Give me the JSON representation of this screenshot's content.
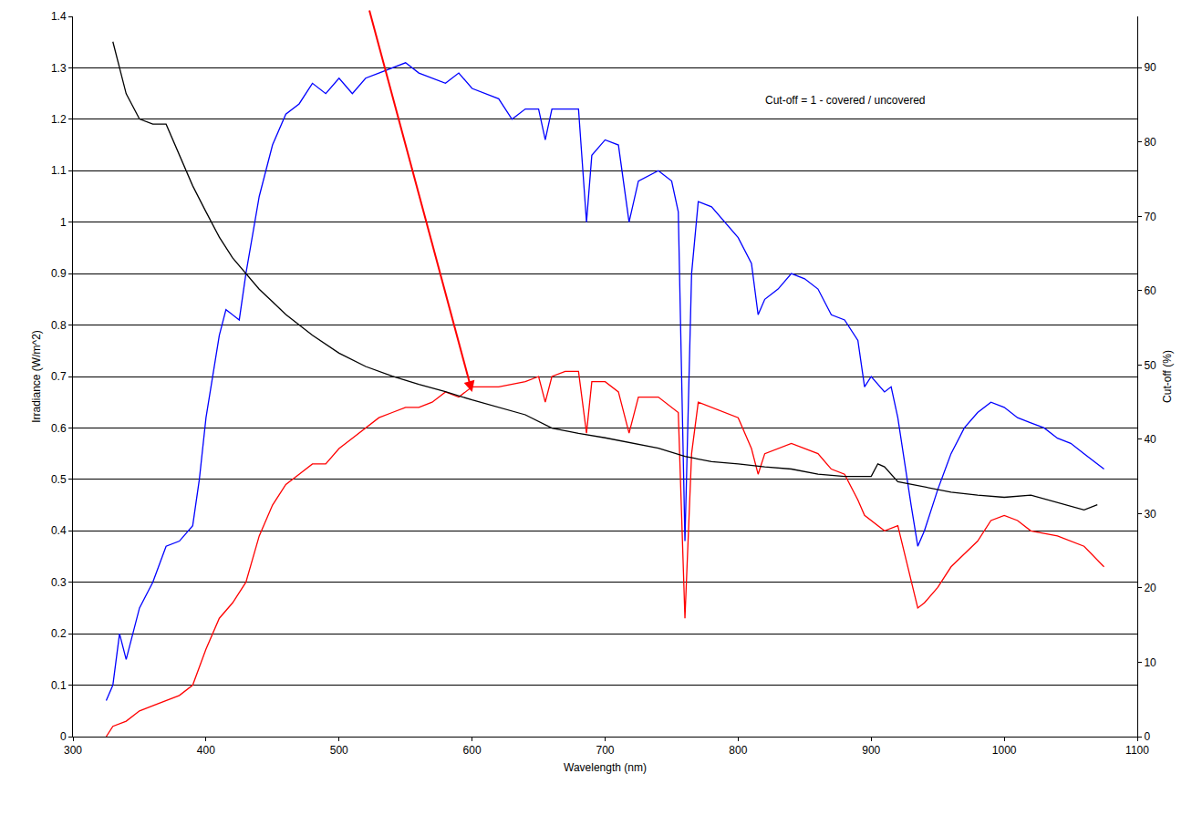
{
  "chart_data": {
    "type": "line",
    "x_label": "Wavelength (nm)",
    "y_label": "Irradiance (W/m^2)",
    "y2_label": "Cut-off (%)",
    "annotations": [
      "Cut-off = 1 - covered / uncovered"
    ],
    "xlim": [
      300,
      1100
    ],
    "xticks": [
      300,
      400,
      500,
      600,
      700,
      800,
      900,
      1000,
      1100
    ],
    "ylim": [
      0,
      1.4
    ],
    "yticks": [
      0,
      0.1,
      0.2,
      0.3,
      0.4,
      0.5,
      0.6,
      0.7,
      0.8,
      0.9,
      1,
      1.1,
      1.2,
      1.3,
      1.4
    ],
    "y2lim": [
      0,
      96.9
    ],
    "y2ticks": [
      0,
      10,
      20,
      30,
      40,
      50,
      60,
      70,
      80,
      90
    ],
    "grid": true,
    "series": [
      {
        "color": "#0000ff",
        "x": [
          325,
          330,
          335,
          340,
          350,
          360,
          370,
          380,
          390,
          395,
          400,
          405,
          410,
          415,
          420,
          425,
          430,
          440,
          450,
          460,
          470,
          480,
          490,
          500,
          510,
          520,
          530,
          540,
          550,
          560,
          570,
          580,
          590,
          600,
          620,
          630,
          640,
          650,
          655,
          660,
          680,
          686,
          690,
          700,
          710,
          718,
          725,
          740,
          750,
          755,
          760,
          765,
          770,
          780,
          800,
          810,
          815,
          820,
          830,
          840,
          850,
          860,
          870,
          880,
          890,
          895,
          900,
          910,
          915,
          920,
          930,
          935,
          940,
          950,
          960,
          970,
          980,
          990,
          1000,
          1010,
          1020,
          1030,
          1040,
          1050,
          1060,
          1070,
          1075
        ],
        "values": [
          0.07,
          0.1,
          0.2,
          0.15,
          0.25,
          0.3,
          0.37,
          0.38,
          0.41,
          0.5,
          0.62,
          0.7,
          0.78,
          0.83,
          0.82,
          0.81,
          0.9,
          1.05,
          1.15,
          1.21,
          1.23,
          1.27,
          1.25,
          1.28,
          1.25,
          1.28,
          1.29,
          1.3,
          1.31,
          1.29,
          1.28,
          1.27,
          1.29,
          1.26,
          1.24,
          1.2,
          1.22,
          1.22,
          1.16,
          1.22,
          1.22,
          1.0,
          1.13,
          1.16,
          1.15,
          1.0,
          1.08,
          1.1,
          1.08,
          1.02,
          0.38,
          0.9,
          1.04,
          1.03,
          0.97,
          0.92,
          0.82,
          0.85,
          0.87,
          0.9,
          0.89,
          0.87,
          0.82,
          0.81,
          0.77,
          0.68,
          0.7,
          0.67,
          0.68,
          0.62,
          0.45,
          0.37,
          0.4,
          0.48,
          0.55,
          0.6,
          0.63,
          0.65,
          0.64,
          0.62,
          0.61,
          0.6,
          0.58,
          0.57,
          0.55,
          0.53,
          0.52
        ]
      },
      {
        "color": "#ff0000",
        "x": [
          325,
          330,
          340,
          350,
          360,
          370,
          380,
          390,
          400,
          410,
          420,
          430,
          440,
          450,
          460,
          470,
          480,
          490,
          500,
          510,
          520,
          530,
          540,
          550,
          560,
          570,
          580,
          590,
          600,
          620,
          640,
          650,
          655,
          660,
          670,
          680,
          686,
          690,
          700,
          710,
          718,
          725,
          740,
          755,
          760,
          765,
          770,
          780,
          800,
          810,
          815,
          820,
          840,
          860,
          870,
          880,
          890,
          895,
          900,
          910,
          920,
          930,
          935,
          940,
          950,
          960,
          980,
          990,
          1000,
          1010,
          1020,
          1040,
          1060,
          1075
        ],
        "values": [
          0.0,
          0.02,
          0.03,
          0.05,
          0.06,
          0.07,
          0.08,
          0.1,
          0.17,
          0.23,
          0.26,
          0.3,
          0.39,
          0.45,
          0.49,
          0.51,
          0.53,
          0.53,
          0.56,
          0.58,
          0.6,
          0.62,
          0.63,
          0.64,
          0.64,
          0.65,
          0.67,
          0.66,
          0.68,
          0.68,
          0.69,
          0.7,
          0.65,
          0.7,
          0.71,
          0.71,
          0.59,
          0.69,
          0.69,
          0.67,
          0.59,
          0.66,
          0.66,
          0.63,
          0.23,
          0.55,
          0.65,
          0.64,
          0.62,
          0.56,
          0.51,
          0.55,
          0.57,
          0.55,
          0.52,
          0.51,
          0.46,
          0.43,
          0.42,
          0.4,
          0.41,
          0.3,
          0.25,
          0.26,
          0.29,
          0.33,
          0.38,
          0.42,
          0.43,
          0.42,
          0.4,
          0.39,
          0.37,
          0.33
        ]
      },
      {
        "color": "#000000",
        "axis": "y2",
        "x": [
          330,
          340,
          350,
          360,
          370,
          380,
          390,
          400,
          410,
          420,
          430,
          440,
          450,
          460,
          480,
          500,
          520,
          540,
          560,
          580,
          600,
          620,
          640,
          660,
          680,
          700,
          720,
          740,
          760,
          780,
          800,
          820,
          840,
          860,
          880,
          900,
          905,
          910,
          920,
          940,
          960,
          980,
          1000,
          1020,
          1040,
          1060,
          1070
        ],
        "values": [
          93.5,
          86.5,
          83.1,
          82.4,
          82.4,
          78.2,
          74.1,
          70.6,
          67.2,
          64.4,
          62.3,
          60.2,
          58.5,
          56.8,
          54,
          51.6,
          49.8,
          48.5,
          47.4,
          46.4,
          45.3,
          44.3,
          43.3,
          41.5,
          40.8,
          40.2,
          39.5,
          38.8,
          37.7,
          37,
          36.7,
          36.3,
          36,
          35.3,
          35,
          35,
          36.7,
          36.3,
          34.3,
          33.6,
          32.9,
          32.5,
          32.2,
          32.5,
          31.5,
          30.5,
          31.2
        ]
      }
    ]
  }
}
